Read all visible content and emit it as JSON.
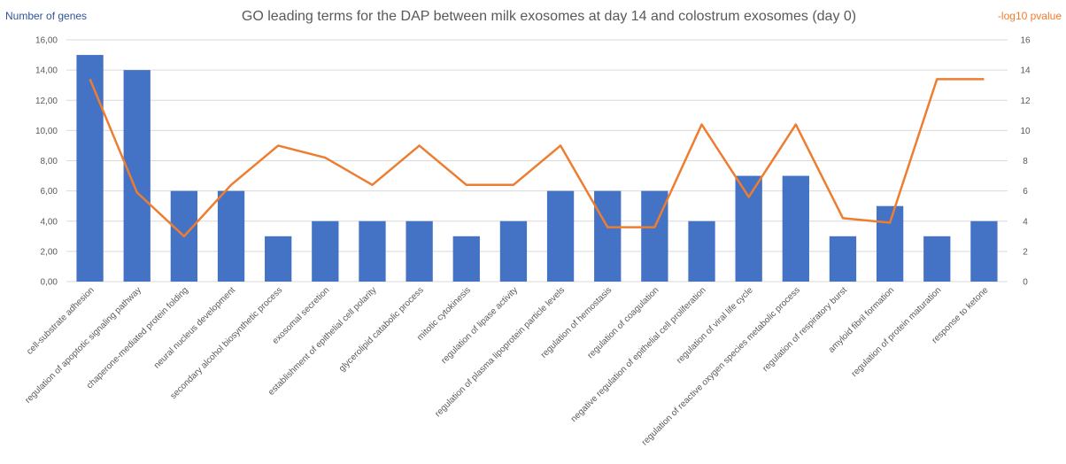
{
  "chart_data": {
    "type": "bar",
    "title": "GO leading terms for the DAP between milk exosomes at day 14 and colostrum exosomes (day 0)",
    "ylabel_left": "Number of genes",
    "ylabel_right": "-log10 pvalue",
    "ylim_left": [
      0,
      16
    ],
    "ylim_right": [
      0,
      16
    ],
    "left_ticks": [
      "0,00",
      "2,00",
      "4,00",
      "6,00",
      "8,00",
      "10,00",
      "12,00",
      "14,00",
      "16,00"
    ],
    "right_ticks": [
      "0",
      "2",
      "4",
      "6",
      "8",
      "10",
      "12",
      "14",
      "16"
    ],
    "grid": true,
    "categories": [
      "cell-substrate adhesion",
      "regulation of apoptotic signaling pathway",
      "chaperone-mediated protein folding",
      "neural nucleus development",
      "secondary alcohol biosynthetic process",
      "exosomal secretion",
      "establishment of epithelial cell polarity",
      "glycerolipid catabolic process",
      "mitotic cytokinesis",
      "regulation of lipase activity",
      "regulation of plasma lipoprotein particle levels",
      "regulation of hemostasis",
      "regulation of coagulation",
      "negative regulation of epithelial cell proliferation",
      "regulation of viral life cycle",
      "regulation of reactive oxygen species metabolic process",
      "regulation of respiratory burst",
      "amyloid fibril formation",
      "regulation of protein maturation",
      "response to ketone"
    ],
    "series": [
      {
        "type": "bar",
        "axis": "left",
        "color": "#4472C4",
        "values": [
          15,
          14,
          6,
          6,
          3,
          4,
          4,
          4,
          3,
          4,
          6,
          6,
          6,
          4,
          7,
          7,
          3,
          5,
          3,
          4
        ]
      },
      {
        "type": "line",
        "axis": "right",
        "color": "#ED7D31",
        "values": [
          13.4,
          5.9,
          3.0,
          6.4,
          9.0,
          8.2,
          6.4,
          9.0,
          6.4,
          6.4,
          9.0,
          3.6,
          3.6,
          10.4,
          5.6,
          10.4,
          4.2,
          3.9,
          13.4,
          13.4
        ]
      }
    ]
  }
}
